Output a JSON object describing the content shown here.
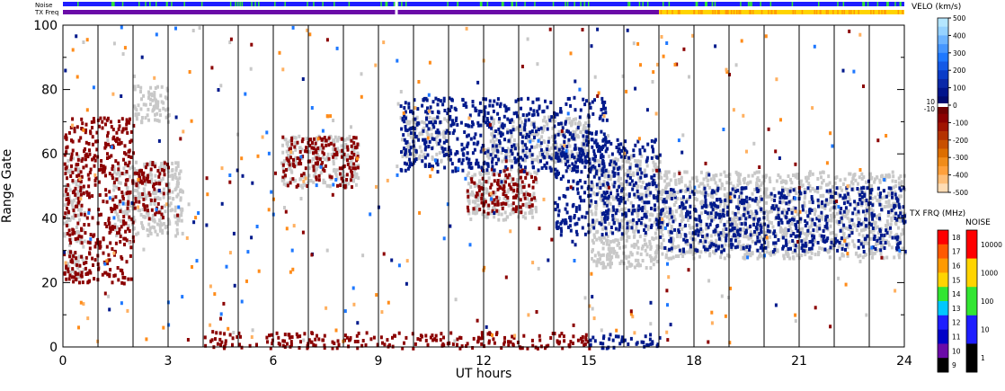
{
  "chart_data": {
    "type": "heatmap",
    "xlabel": "UT hours",
    "ylabel": "Range Gate",
    "xlim": [
      0,
      24
    ],
    "ylim": [
      0,
      100
    ],
    "x_ticks": [
      0,
      3,
      6,
      9,
      12,
      15,
      18,
      21,
      24
    ],
    "x_tick_labels": [
      "0",
      "3",
      "6",
      "9",
      "12",
      "15",
      "18",
      "21",
      "24"
    ],
    "y_ticks": [
      0,
      20,
      40,
      60,
      80,
      100
    ],
    "y_tick_labels": [
      "0",
      "20",
      "40",
      "60",
      "80",
      "100"
    ],
    "hour_lines": [
      1,
      2,
      3,
      4,
      5,
      6,
      7,
      8,
      9,
      10,
      11,
      12,
      13,
      14,
      15,
      16,
      17,
      18,
      19,
      20,
      21,
      22,
      23
    ],
    "status_bars": {
      "noise_label": "Noise",
      "txfreq_label": "TX Freq",
      "noise_gap_hour": 9.5,
      "txfreq_segments": [
        {
          "from": 0,
          "to": 17,
          "color": "#6a0aa8"
        },
        {
          "from": 17,
          "to": 24,
          "color": "#ffd400"
        }
      ]
    },
    "velocity_colorbar": {
      "title": "VELO (km/s)",
      "labels": [
        "500",
        "400",
        "300",
        "200",
        "100",
        "0",
        "-100",
        "-200",
        "-300",
        "-400",
        "-500"
      ],
      "zero_band_labels": [
        "10",
        "-10"
      ],
      "range": [
        -500,
        500
      ]
    },
    "txfreq_colorbar": {
      "title": "TX FRQ (MHz)",
      "labels": [
        "18",
        "17",
        "16",
        "15",
        "14",
        "13",
        "12",
        "11",
        "10",
        "9"
      ],
      "colors": [
        "#ff0000",
        "#ff5a00",
        "#ff9a00",
        "#ffd400",
        "#32e632",
        "#00c8ff",
        "#1e1eff",
        "#0000c8",
        "#6a0aa8",
        "#000000"
      ]
    },
    "noise_colorbar": {
      "title": "NOISE",
      "labels": [
        "10000",
        "1000",
        "100",
        "10",
        "1"
      ],
      "colors": [
        "#ff0000",
        "#ffd400",
        "#32e632",
        "#1e1eff",
        "#000000"
      ]
    },
    "series": [
      {
        "kind": "ground-scatter",
        "color": "#c8c8c8",
        "regions": [
          {
            "x": [
              0.0,
              0.6
            ],
            "y": [
              22,
              60
            ]
          },
          {
            "x": [
              1.4,
              3.4
            ],
            "y": [
              35,
              58
            ]
          },
          {
            "x": [
              2.0,
              3.0
            ],
            "y": [
              70,
              82
            ]
          },
          {
            "x": [
              6.2,
              8.4
            ],
            "y": [
              50,
              66
            ]
          },
          {
            "x": [
              9.6,
              11.0
            ],
            "y": [
              58,
              72
            ]
          },
          {
            "x": [
              11.5,
              13.5
            ],
            "y": [
              40,
              56
            ]
          },
          {
            "x": [
              12.0,
              15.0
            ],
            "y": [
              58,
              72
            ]
          },
          {
            "x": [
              15.0,
              17.0
            ],
            "y": [
              25,
              60
            ]
          },
          {
            "x": [
              17.0,
              24.0
            ],
            "y": [
              28,
              55
            ]
          }
        ]
      },
      {
        "kind": "negative-velocity",
        "color": "#8b0000",
        "regions": [
          {
            "x": [
              0.0,
              2.0
            ],
            "y": [
              20,
              72
            ]
          },
          {
            "x": [
              2.0,
              3.0
            ],
            "y": [
              40,
              58
            ]
          },
          {
            "x": [
              6.2,
              8.4
            ],
            "y": [
              50,
              66
            ]
          },
          {
            "x": [
              11.5,
              13.5
            ],
            "y": [
              42,
              56
            ]
          },
          {
            "x": [
              4.0,
              15.0
            ],
            "y": [
              0,
              5
            ]
          }
        ]
      },
      {
        "kind": "positive-velocity",
        "color": "#001a8c",
        "regions": [
          {
            "x": [
              9.6,
              15.5
            ],
            "y": [
              55,
              78
            ]
          },
          {
            "x": [
              14.0,
              17.0
            ],
            "y": [
              35,
              65
            ]
          },
          {
            "x": [
              15.0,
              17.0
            ],
            "y": [
              0,
              5
            ]
          },
          {
            "x": [
              17.0,
              24.0
            ],
            "y": [
              30,
              50
            ]
          }
        ]
      }
    ]
  }
}
